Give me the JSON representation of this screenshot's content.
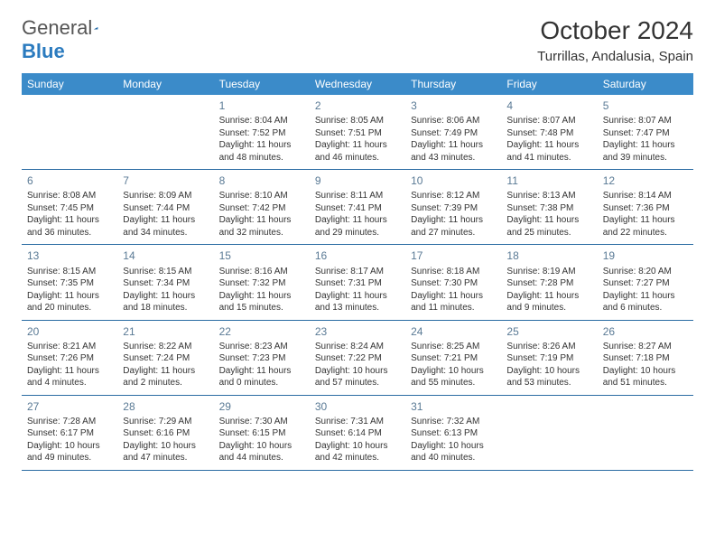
{
  "brand": {
    "part1": "General",
    "part2": "Blue"
  },
  "header": {
    "month_title": "October 2024",
    "location": "Turrillas, Andalusia, Spain"
  },
  "style": {
    "header_bg": "#3b8bc9",
    "header_text_color": "#ffffff",
    "border_color": "#2b6ca3",
    "daynum_color": "#5a7a95",
    "body_font_size": 10,
    "header_font_size": 12,
    "month_title_font_size": 28,
    "location_font_size": 15
  },
  "day_names": [
    "Sunday",
    "Monday",
    "Tuesday",
    "Wednesday",
    "Thursday",
    "Friday",
    "Saturday"
  ],
  "weeks": [
    [
      null,
      null,
      {
        "n": "1",
        "sr": "Sunrise: 8:04 AM",
        "ss": "Sunset: 7:52 PM",
        "d1": "Daylight: 11 hours",
        "d2": "and 48 minutes."
      },
      {
        "n": "2",
        "sr": "Sunrise: 8:05 AM",
        "ss": "Sunset: 7:51 PM",
        "d1": "Daylight: 11 hours",
        "d2": "and 46 minutes."
      },
      {
        "n": "3",
        "sr": "Sunrise: 8:06 AM",
        "ss": "Sunset: 7:49 PM",
        "d1": "Daylight: 11 hours",
        "d2": "and 43 minutes."
      },
      {
        "n": "4",
        "sr": "Sunrise: 8:07 AM",
        "ss": "Sunset: 7:48 PM",
        "d1": "Daylight: 11 hours",
        "d2": "and 41 minutes."
      },
      {
        "n": "5",
        "sr": "Sunrise: 8:07 AM",
        "ss": "Sunset: 7:47 PM",
        "d1": "Daylight: 11 hours",
        "d2": "and 39 minutes."
      }
    ],
    [
      {
        "n": "6",
        "sr": "Sunrise: 8:08 AM",
        "ss": "Sunset: 7:45 PM",
        "d1": "Daylight: 11 hours",
        "d2": "and 36 minutes."
      },
      {
        "n": "7",
        "sr": "Sunrise: 8:09 AM",
        "ss": "Sunset: 7:44 PM",
        "d1": "Daylight: 11 hours",
        "d2": "and 34 minutes."
      },
      {
        "n": "8",
        "sr": "Sunrise: 8:10 AM",
        "ss": "Sunset: 7:42 PM",
        "d1": "Daylight: 11 hours",
        "d2": "and 32 minutes."
      },
      {
        "n": "9",
        "sr": "Sunrise: 8:11 AM",
        "ss": "Sunset: 7:41 PM",
        "d1": "Daylight: 11 hours",
        "d2": "and 29 minutes."
      },
      {
        "n": "10",
        "sr": "Sunrise: 8:12 AM",
        "ss": "Sunset: 7:39 PM",
        "d1": "Daylight: 11 hours",
        "d2": "and 27 minutes."
      },
      {
        "n": "11",
        "sr": "Sunrise: 8:13 AM",
        "ss": "Sunset: 7:38 PM",
        "d1": "Daylight: 11 hours",
        "d2": "and 25 minutes."
      },
      {
        "n": "12",
        "sr": "Sunrise: 8:14 AM",
        "ss": "Sunset: 7:36 PM",
        "d1": "Daylight: 11 hours",
        "d2": "and 22 minutes."
      }
    ],
    [
      {
        "n": "13",
        "sr": "Sunrise: 8:15 AM",
        "ss": "Sunset: 7:35 PM",
        "d1": "Daylight: 11 hours",
        "d2": "and 20 minutes."
      },
      {
        "n": "14",
        "sr": "Sunrise: 8:15 AM",
        "ss": "Sunset: 7:34 PM",
        "d1": "Daylight: 11 hours",
        "d2": "and 18 minutes."
      },
      {
        "n": "15",
        "sr": "Sunrise: 8:16 AM",
        "ss": "Sunset: 7:32 PM",
        "d1": "Daylight: 11 hours",
        "d2": "and 15 minutes."
      },
      {
        "n": "16",
        "sr": "Sunrise: 8:17 AM",
        "ss": "Sunset: 7:31 PM",
        "d1": "Daylight: 11 hours",
        "d2": "and 13 minutes."
      },
      {
        "n": "17",
        "sr": "Sunrise: 8:18 AM",
        "ss": "Sunset: 7:30 PM",
        "d1": "Daylight: 11 hours",
        "d2": "and 11 minutes."
      },
      {
        "n": "18",
        "sr": "Sunrise: 8:19 AM",
        "ss": "Sunset: 7:28 PM",
        "d1": "Daylight: 11 hours",
        "d2": "and 9 minutes."
      },
      {
        "n": "19",
        "sr": "Sunrise: 8:20 AM",
        "ss": "Sunset: 7:27 PM",
        "d1": "Daylight: 11 hours",
        "d2": "and 6 minutes."
      }
    ],
    [
      {
        "n": "20",
        "sr": "Sunrise: 8:21 AM",
        "ss": "Sunset: 7:26 PM",
        "d1": "Daylight: 11 hours",
        "d2": "and 4 minutes."
      },
      {
        "n": "21",
        "sr": "Sunrise: 8:22 AM",
        "ss": "Sunset: 7:24 PM",
        "d1": "Daylight: 11 hours",
        "d2": "and 2 minutes."
      },
      {
        "n": "22",
        "sr": "Sunrise: 8:23 AM",
        "ss": "Sunset: 7:23 PM",
        "d1": "Daylight: 11 hours",
        "d2": "and 0 minutes."
      },
      {
        "n": "23",
        "sr": "Sunrise: 8:24 AM",
        "ss": "Sunset: 7:22 PM",
        "d1": "Daylight: 10 hours",
        "d2": "and 57 minutes."
      },
      {
        "n": "24",
        "sr": "Sunrise: 8:25 AM",
        "ss": "Sunset: 7:21 PM",
        "d1": "Daylight: 10 hours",
        "d2": "and 55 minutes."
      },
      {
        "n": "25",
        "sr": "Sunrise: 8:26 AM",
        "ss": "Sunset: 7:19 PM",
        "d1": "Daylight: 10 hours",
        "d2": "and 53 minutes."
      },
      {
        "n": "26",
        "sr": "Sunrise: 8:27 AM",
        "ss": "Sunset: 7:18 PM",
        "d1": "Daylight: 10 hours",
        "d2": "and 51 minutes."
      }
    ],
    [
      {
        "n": "27",
        "sr": "Sunrise: 7:28 AM",
        "ss": "Sunset: 6:17 PM",
        "d1": "Daylight: 10 hours",
        "d2": "and 49 minutes."
      },
      {
        "n": "28",
        "sr": "Sunrise: 7:29 AM",
        "ss": "Sunset: 6:16 PM",
        "d1": "Daylight: 10 hours",
        "d2": "and 47 minutes."
      },
      {
        "n": "29",
        "sr": "Sunrise: 7:30 AM",
        "ss": "Sunset: 6:15 PM",
        "d1": "Daylight: 10 hours",
        "d2": "and 44 minutes."
      },
      {
        "n": "30",
        "sr": "Sunrise: 7:31 AM",
        "ss": "Sunset: 6:14 PM",
        "d1": "Daylight: 10 hours",
        "d2": "and 42 minutes."
      },
      {
        "n": "31",
        "sr": "Sunrise: 7:32 AM",
        "ss": "Sunset: 6:13 PM",
        "d1": "Daylight: 10 hours",
        "d2": "and 40 minutes."
      },
      null,
      null
    ]
  ]
}
